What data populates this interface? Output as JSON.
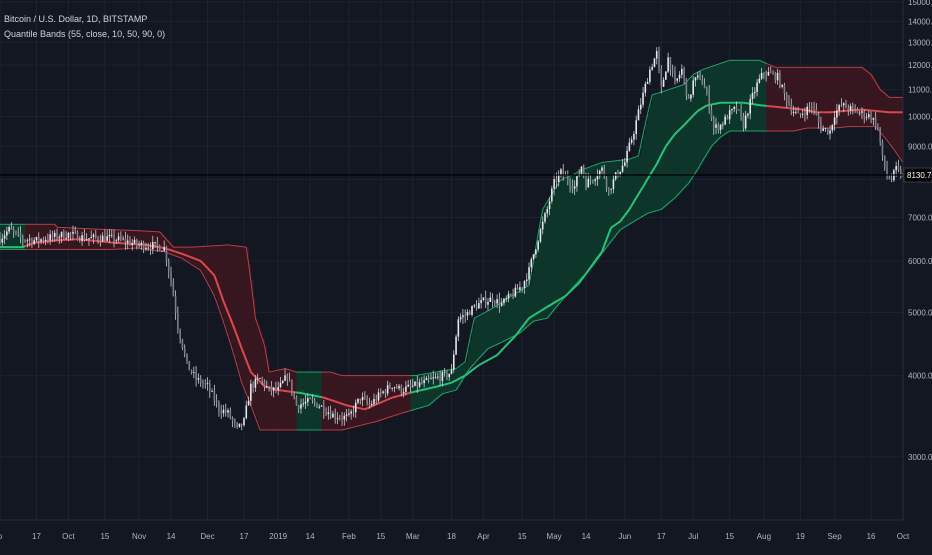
{
  "header": {
    "symbol_line": "Bitcoin / U.S. Dollar, 1D, BITSTAMP",
    "indicator_line": "Quantile Bands (55, close, 10, 50, 90, 0)"
  },
  "price_label": "8130.76",
  "colors": {
    "background": "#131722",
    "grid": "#1e2230",
    "axis_text": "#b2b5be",
    "band_bull": "#22c77a",
    "band_bear": "#e0484f",
    "fill_bull": "#0d3b2b",
    "fill_bear": "#3d1820",
    "candle": "#c8cbd2"
  },
  "chart_data": {
    "type": "line",
    "title": "Bitcoin / U.S. Dollar, 1D, BITSTAMP",
    "ylim": [
      2400,
      15100
    ],
    "y_ticks": [
      "3000.00",
      "4000.00",
      "5000.00",
      "6000.00",
      "7000.00",
      "8000.00",
      "9000.00",
      "10000.00",
      "11000.00",
      "12000.00",
      "13000.00",
      "14000.00",
      "15000.00"
    ],
    "y_tick_values": [
      3000,
      4000,
      5000,
      6000,
      7000,
      8000,
      9000,
      10000,
      11000,
      12000,
      13000,
      14000,
      15000
    ],
    "x_ticks": [
      "p",
      "17",
      "Oct",
      "15",
      "Nov",
      "14",
      "Dec",
      "17",
      "2019",
      "14",
      "Feb",
      "15",
      "Mar",
      "18",
      "Apr",
      "15",
      "May",
      "14",
      "Jun",
      "17",
      "Jul",
      "15",
      "Aug",
      "19",
      "Sep",
      "16",
      "Oct"
    ],
    "x_tick_index": [
      0,
      16,
      30,
      46,
      61,
      75,
      91,
      107,
      122,
      136,
      153,
      167,
      181,
      198,
      212,
      229,
      243,
      257,
      274,
      290,
      304,
      320,
      335,
      351,
      366,
      382,
      396
    ],
    "x_count": 397,
    "close": [
      [
        0,
        6500
      ],
      [
        4,
        6700
      ],
      [
        10,
        6480
      ],
      [
        16,
        6450
      ],
      [
        22,
        6520
      ],
      [
        30,
        6600
      ],
      [
        38,
        6500
      ],
      [
        46,
        6520
      ],
      [
        54,
        6450
      ],
      [
        61,
        6350
      ],
      [
        68,
        6330
      ],
      [
        72,
        6280
      ],
      [
        75,
        5600
      ],
      [
        78,
        4750
      ],
      [
        82,
        4150
      ],
      [
        86,
        3950
      ],
      [
        91,
        3850
      ],
      [
        96,
        3560
      ],
      [
        100,
        3500
      ],
      [
        104,
        3300
      ],
      [
        107,
        3400
      ],
      [
        110,
        3850
      ],
      [
        114,
        3950
      ],
      [
        118,
        3800
      ],
      [
        122,
        3800
      ],
      [
        126,
        4000
      ],
      [
        130,
        3600
      ],
      [
        136,
        3650
      ],
      [
        140,
        3600
      ],
      [
        146,
        3480
      ],
      [
        150,
        3450
      ],
      [
        153,
        3450
      ],
      [
        158,
        3700
      ],
      [
        162,
        3600
      ],
      [
        167,
        3750
      ],
      [
        172,
        3870
      ],
      [
        176,
        3800
      ],
      [
        181,
        3850
      ],
      [
        186,
        3900
      ],
      [
        190,
        3950
      ],
      [
        195,
        4000
      ],
      [
        198,
        4050
      ],
      [
        201,
        4900
      ],
      [
        204,
        4950
      ],
      [
        208,
        5100
      ],
      [
        212,
        5200
      ],
      [
        216,
        5250
      ],
      [
        220,
        5150
      ],
      [
        224,
        5300
      ],
      [
        229,
        5500
      ],
      [
        232,
        5800
      ],
      [
        236,
        6500
      ],
      [
        240,
        7200
      ],
      [
        243,
        7900
      ],
      [
        246,
        8200
      ],
      [
        249,
        8000
      ],
      [
        252,
        7800
      ],
      [
        255,
        8400
      ],
      [
        257,
        7900
      ],
      [
        260,
        8050
      ],
      [
        264,
        8300
      ],
      [
        267,
        7700
      ],
      [
        270,
        8100
      ],
      [
        274,
        8500
      ],
      [
        278,
        9500
      ],
      [
        282,
        10800
      ],
      [
        285,
        11800
      ],
      [
        288,
        12500
      ],
      [
        290,
        11000
      ],
      [
        293,
        12300
      ],
      [
        296,
        11200
      ],
      [
        299,
        11800
      ],
      [
        302,
        10500
      ],
      [
        304,
        11300
      ],
      [
        307,
        11500
      ],
      [
        310,
        10800
      ],
      [
        313,
        9600
      ],
      [
        316,
        9700
      ],
      [
        320,
        10100
      ],
      [
        323,
        10300
      ],
      [
        326,
        9700
      ],
      [
        329,
        10500
      ],
      [
        332,
        11200
      ],
      [
        335,
        11700
      ],
      [
        338,
        11600
      ],
      [
        341,
        11500
      ],
      [
        344,
        10800
      ],
      [
        347,
        10300
      ],
      [
        350,
        10000
      ],
      [
        353,
        10200
      ],
      [
        356,
        10400
      ],
      [
        360,
        9600
      ],
      [
        364,
        9500
      ],
      [
        366,
        10100
      ],
      [
        369,
        10400
      ],
      [
        372,
        10300
      ],
      [
        375,
        10200
      ],
      [
        378,
        10100
      ],
      [
        382,
        10000
      ],
      [
        385,
        9600
      ],
      [
        387,
        8600
      ],
      [
        389,
        8100
      ],
      [
        391,
        8000
      ],
      [
        393,
        8300
      ],
      [
        395,
        8130
      ]
    ],
    "upper": [
      [
        0,
        6830
      ],
      [
        14,
        6830
      ],
      [
        23,
        6830
      ],
      [
        24,
        6830
      ],
      [
        25,
        6760
      ],
      [
        40,
        6720
      ],
      [
        60,
        6680
      ],
      [
        70,
        6650
      ],
      [
        76,
        6300
      ],
      [
        83,
        6300
      ],
      [
        84,
        6300
      ],
      [
        100,
        6350
      ],
      [
        108,
        6300
      ],
      [
        112,
        4900
      ],
      [
        116,
        4450
      ],
      [
        118,
        4050
      ],
      [
        125,
        4100
      ],
      [
        130,
        4050
      ],
      [
        145,
        4050
      ],
      [
        150,
        4000
      ],
      [
        170,
        4000
      ],
      [
        182,
        4000
      ],
      [
        200,
        4100
      ],
      [
        204,
        4200
      ],
      [
        208,
        4900
      ],
      [
        215,
        5050
      ],
      [
        228,
        5400
      ],
      [
        232,
        5500
      ],
      [
        234,
        6000
      ],
      [
        238,
        7200
      ],
      [
        242,
        7600
      ],
      [
        246,
        8000
      ],
      [
        250,
        8100
      ],
      [
        256,
        8300
      ],
      [
        260,
        8400
      ],
      [
        264,
        8500
      ],
      [
        276,
        8600
      ],
      [
        280,
        8700
      ],
      [
        286,
        10800
      ],
      [
        290,
        10900
      ],
      [
        300,
        11200
      ],
      [
        304,
        11600
      ],
      [
        308,
        11800
      ],
      [
        320,
        12200
      ],
      [
        333,
        12200
      ],
      [
        340,
        11900
      ],
      [
        352,
        11900
      ],
      [
        366,
        11900
      ],
      [
        378,
        11900
      ],
      [
        382,
        11600
      ],
      [
        386,
        11000
      ],
      [
        390,
        10700
      ],
      [
        396,
        10700
      ]
    ],
    "median": [
      [
        0,
        6300
      ],
      [
        10,
        6300
      ],
      [
        15,
        6400
      ],
      [
        24,
        6450
      ],
      [
        34,
        6480
      ],
      [
        50,
        6400
      ],
      [
        64,
        6350
      ],
      [
        72,
        6280
      ],
      [
        80,
        6150
      ],
      [
        88,
        6000
      ],
      [
        94,
        5700
      ],
      [
        98,
        5200
      ],
      [
        102,
        4800
      ],
      [
        106,
        4400
      ],
      [
        110,
        4050
      ],
      [
        116,
        3850
      ],
      [
        122,
        3800
      ],
      [
        132,
        3760
      ],
      [
        142,
        3700
      ],
      [
        152,
        3600
      ],
      [
        160,
        3550
      ],
      [
        164,
        3600
      ],
      [
        172,
        3700
      ],
      [
        182,
        3780
      ],
      [
        192,
        3850
      ],
      [
        198,
        3900
      ],
      [
        204,
        4000
      ],
      [
        210,
        4150
      ],
      [
        218,
        4300
      ],
      [
        226,
        4600
      ],
      [
        232,
        4900
      ],
      [
        238,
        5050
      ],
      [
        242,
        5150
      ],
      [
        248,
        5300
      ],
      [
        254,
        5550
      ],
      [
        258,
        5800
      ],
      [
        264,
        6200
      ],
      [
        268,
        6750
      ],
      [
        272,
        6900
      ],
      [
        276,
        7200
      ],
      [
        282,
        7800
      ],
      [
        288,
        8450
      ],
      [
        292,
        9000
      ],
      [
        296,
        9400
      ],
      [
        300,
        9700
      ],
      [
        306,
        10200
      ],
      [
        310,
        10400
      ],
      [
        316,
        10500
      ],
      [
        326,
        10500
      ],
      [
        334,
        10400
      ],
      [
        340,
        10350
      ],
      [
        346,
        10300
      ],
      [
        352,
        10250
      ],
      [
        358,
        10150
      ],
      [
        364,
        10150
      ],
      [
        370,
        10200
      ],
      [
        378,
        10250
      ],
      [
        384,
        10200
      ],
      [
        390,
        10150
      ],
      [
        396,
        10150
      ]
    ],
    "lower": [
      [
        0,
        6250
      ],
      [
        10,
        6250
      ],
      [
        15,
        6250
      ],
      [
        30,
        6250
      ],
      [
        50,
        6250
      ],
      [
        60,
        6280
      ],
      [
        72,
        6200
      ],
      [
        80,
        6050
      ],
      [
        88,
        5800
      ],
      [
        94,
        5300
      ],
      [
        100,
        4600
      ],
      [
        106,
        3900
      ],
      [
        110,
        3600
      ],
      [
        114,
        3300
      ],
      [
        120,
        3300
      ],
      [
        135,
        3300
      ],
      [
        150,
        3300
      ],
      [
        165,
        3400
      ],
      [
        176,
        3500
      ],
      [
        188,
        3600
      ],
      [
        194,
        3750
      ],
      [
        200,
        3800
      ],
      [
        206,
        4100
      ],
      [
        214,
        4400
      ],
      [
        220,
        4500
      ],
      [
        228,
        4650
      ],
      [
        234,
        4850
      ],
      [
        240,
        4900
      ],
      [
        246,
        5200
      ],
      [
        252,
        5500
      ],
      [
        260,
        5900
      ],
      [
        266,
        6300
      ],
      [
        272,
        6700
      ],
      [
        278,
        6900
      ],
      [
        284,
        7100
      ],
      [
        290,
        7200
      ],
      [
        296,
        7500
      ],
      [
        302,
        7900
      ],
      [
        306,
        8300
      ],
      [
        312,
        9000
      ],
      [
        316,
        9300
      ],
      [
        320,
        9500
      ],
      [
        326,
        9500
      ],
      [
        332,
        9500
      ],
      [
        340,
        9500
      ],
      [
        348,
        9500
      ],
      [
        354,
        9600
      ],
      [
        360,
        9600
      ],
      [
        366,
        9600
      ],
      [
        372,
        9650
      ],
      [
        378,
        9650
      ],
      [
        384,
        9650
      ],
      [
        390,
        9100
      ],
      [
        396,
        8500
      ]
    ],
    "bull_ranges": [
      [
        0,
        10
      ],
      [
        130,
        140
      ],
      [
        180,
        335
      ]
    ],
    "grid": true,
    "legend": "none"
  }
}
